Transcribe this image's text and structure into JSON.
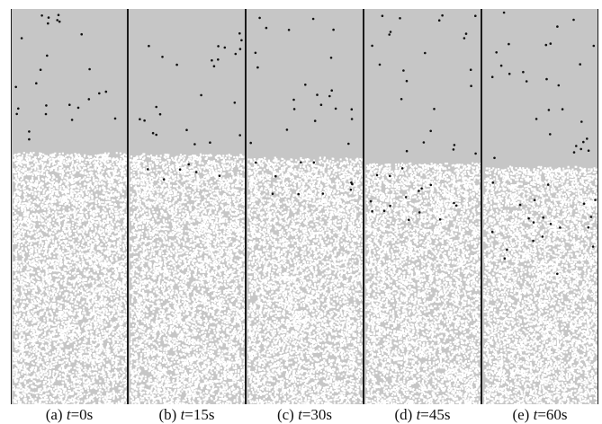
{
  "panels": [
    {
      "letter": "(a)",
      "tvar": "t",
      "value": "=0s"
    },
    {
      "letter": "(b)",
      "tvar": "t",
      "value": "=15s"
    },
    {
      "letter": "(c)",
      "tvar": "t",
      "value": "=30s"
    },
    {
      "letter": "(d)",
      "tvar": "t",
      "value": "=45s"
    },
    {
      "letter": "(e)",
      "tvar": "t",
      "value": "=60s"
    }
  ],
  "colors": {
    "background": "#c6c6c6",
    "bed_particle": "#ffffff",
    "tracer_particle": "#111111",
    "frame": "#1a1a1a"
  }
}
